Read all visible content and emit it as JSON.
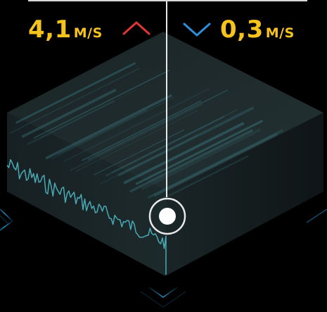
{
  "speed_up": {
    "value": "4,1",
    "unit": "M/S",
    "arrow_icon": "chevron-up-icon",
    "arrow_color": "#e03535"
  },
  "speed_down": {
    "value": "0,3",
    "unit": "M/S",
    "arrow_icon": "chevron-down-icon",
    "arrow_color": "#2f8ed8"
  },
  "colors": {
    "value_text": "#f6c21c",
    "waveform": "#4aa9b4",
    "cube_face": "#1c2527",
    "guide_line": "#e8e8e8",
    "marker": "#ffffff",
    "floor_glow": "#1e7fb0"
  }
}
